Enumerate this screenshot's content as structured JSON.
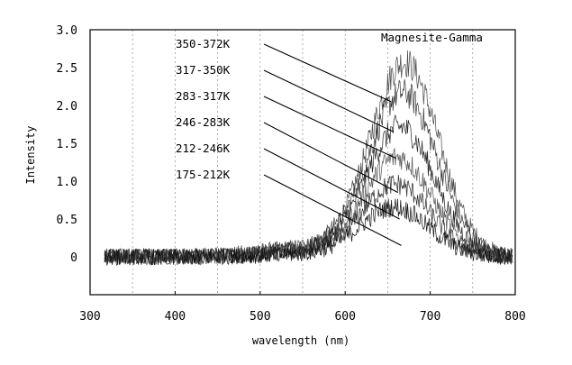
{
  "chart_data": {
    "type": "line",
    "title": "Magnesite-Gamma",
    "xlabel": "wavelength (nm)",
    "ylabel": "Intensity",
    "xlim": [
      300,
      800
    ],
    "ylim": [
      -0.5,
      3.0
    ],
    "x_ticks": [
      300,
      400,
      500,
      600,
      700,
      800
    ],
    "x_tick_labels": [
      "300",
      "400",
      "500",
      "600",
      "700",
      "800"
    ],
    "y_ticks": [
      0,
      0.5,
      1.0,
      1.5,
      2.0,
      2.5,
      3.0
    ],
    "y_tick_labels": [
      "0",
      "0.5",
      "1.0",
      "1.5",
      "2.0",
      "2.5",
      "3.0"
    ],
    "grid": "vertical dashed",
    "x_gridlines": [
      350,
      400,
      450,
      500,
      550,
      600,
      650,
      700,
      750
    ],
    "noise_amplitude": 0.11,
    "x_start": 317,
    "x_end": 797,
    "series": [
      {
        "name": "350-372K",
        "peak_x": 670,
        "peak_y": 2.55,
        "width": 40,
        "label_arrow_end": [
          654,
          2.05
        ]
      },
      {
        "name": "317-350K",
        "peak_x": 668,
        "peak_y": 2.15,
        "width": 40,
        "label_arrow_end": [
          657,
          1.65
        ]
      },
      {
        "name": "283-317K",
        "peak_x": 665,
        "peak_y": 1.7,
        "width": 40,
        "label_arrow_end": [
          660,
          1.3
        ]
      },
      {
        "name": "246-283K",
        "peak_x": 662,
        "peak_y": 1.3,
        "width": 40,
        "label_arrow_end": [
          662,
          0.85
        ]
      },
      {
        "name": "212-246K",
        "peak_x": 660,
        "peak_y": 0.95,
        "width": 40,
        "label_arrow_end": [
          664,
          0.5
        ]
      },
      {
        "name": "175-212K",
        "peak_x": 658,
        "peak_y": 0.65,
        "width": 40,
        "label_arrow_end": [
          666,
          0.15
        ]
      }
    ]
  }
}
